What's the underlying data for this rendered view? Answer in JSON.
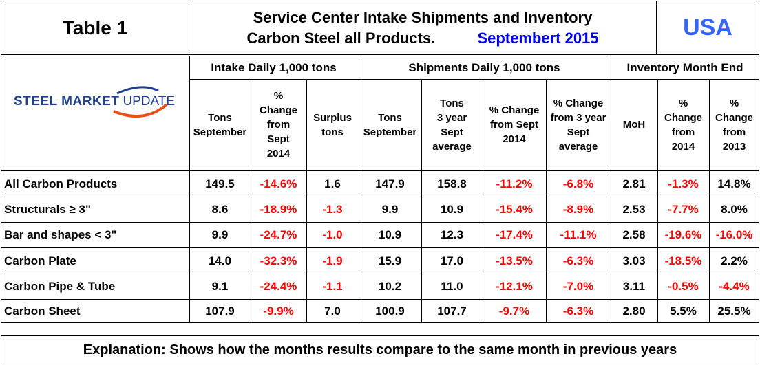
{
  "header": {
    "table_label": "Table 1",
    "title_line1": "Service Center Intake Shipments and Inventory",
    "title_line2": "Carbon Steel all Products.",
    "title_date": "Septembert 2015",
    "country": "USA"
  },
  "logo": {
    "text_bold": "STEEL MARKET",
    "text_light": "UPDATE",
    "accent": "#e8501a",
    "brand": "#1f3f8f"
  },
  "groups": {
    "intake": "Intake Daily 1,000 tons",
    "shipments": "Shipments Daily 1,000 tons",
    "inventory": "Inventory Month End"
  },
  "columns": [
    [
      "Tons",
      "September"
    ],
    [
      "%",
      "Change",
      "from",
      "Sept",
      "2014"
    ],
    [
      "Surplus",
      "tons"
    ],
    [
      "Tons",
      "September"
    ],
    [
      "Tons",
      "3 year",
      "Sept",
      "average"
    ],
    [
      "% Change",
      "from Sept",
      "2014"
    ],
    [
      "% Change",
      "from 3 year",
      "Sept",
      "average"
    ],
    [
      "MoH"
    ],
    [
      "%",
      "Change",
      "from",
      "2014"
    ],
    [
      "%",
      "Change",
      "from",
      "2013"
    ]
  ],
  "rows": [
    {
      "label": "All Carbon Products",
      "values": [
        "149.5",
        "-14.6%",
        "1.6",
        "147.9",
        "158.8",
        "-11.2%",
        "-6.8%",
        "2.81",
        "-1.3%",
        "14.8%"
      ]
    },
    {
      "label": "Structurals ≥ 3\"",
      "values": [
        "8.6",
        "-18.9%",
        "-1.3",
        "9.9",
        "10.9",
        "-15.4%",
        "-8.9%",
        "2.53",
        "-7.7%",
        "8.0%"
      ]
    },
    {
      "label": "Bar and shapes < 3\"",
      "values": [
        "9.9",
        "-24.7%",
        "-1.0",
        "10.9",
        "12.3",
        "-17.4%",
        "-11.1%",
        "2.58",
        "-19.6%",
        "-16.0%"
      ]
    },
    {
      "label": "Carbon Plate",
      "values": [
        "14.0",
        "-32.3%",
        "-1.9",
        "15.9",
        "17.0",
        "-13.5%",
        "-6.3%",
        "3.03",
        "-18.5%",
        "2.2%"
      ]
    },
    {
      "label": "Carbon Pipe & Tube",
      "values": [
        "9.1",
        "-24.4%",
        "-1.1",
        "10.2",
        "11.0",
        "-12.1%",
        "-7.0%",
        "3.11",
        "-0.5%",
        "-4.4%"
      ]
    },
    {
      "label": "Carbon Sheet",
      "values": [
        "107.9",
        "-9.9%",
        "7.0",
        "100.9",
        "107.7",
        "-9.7%",
        "-6.3%",
        "2.80",
        "5.5%",
        "25.5%"
      ]
    }
  ],
  "explanation": "Explanation: Shows how the months results compare to the same month in previous years",
  "colors": {
    "negative": "#ff0000",
    "usa": "#3366ff",
    "date": "#0000ee"
  }
}
